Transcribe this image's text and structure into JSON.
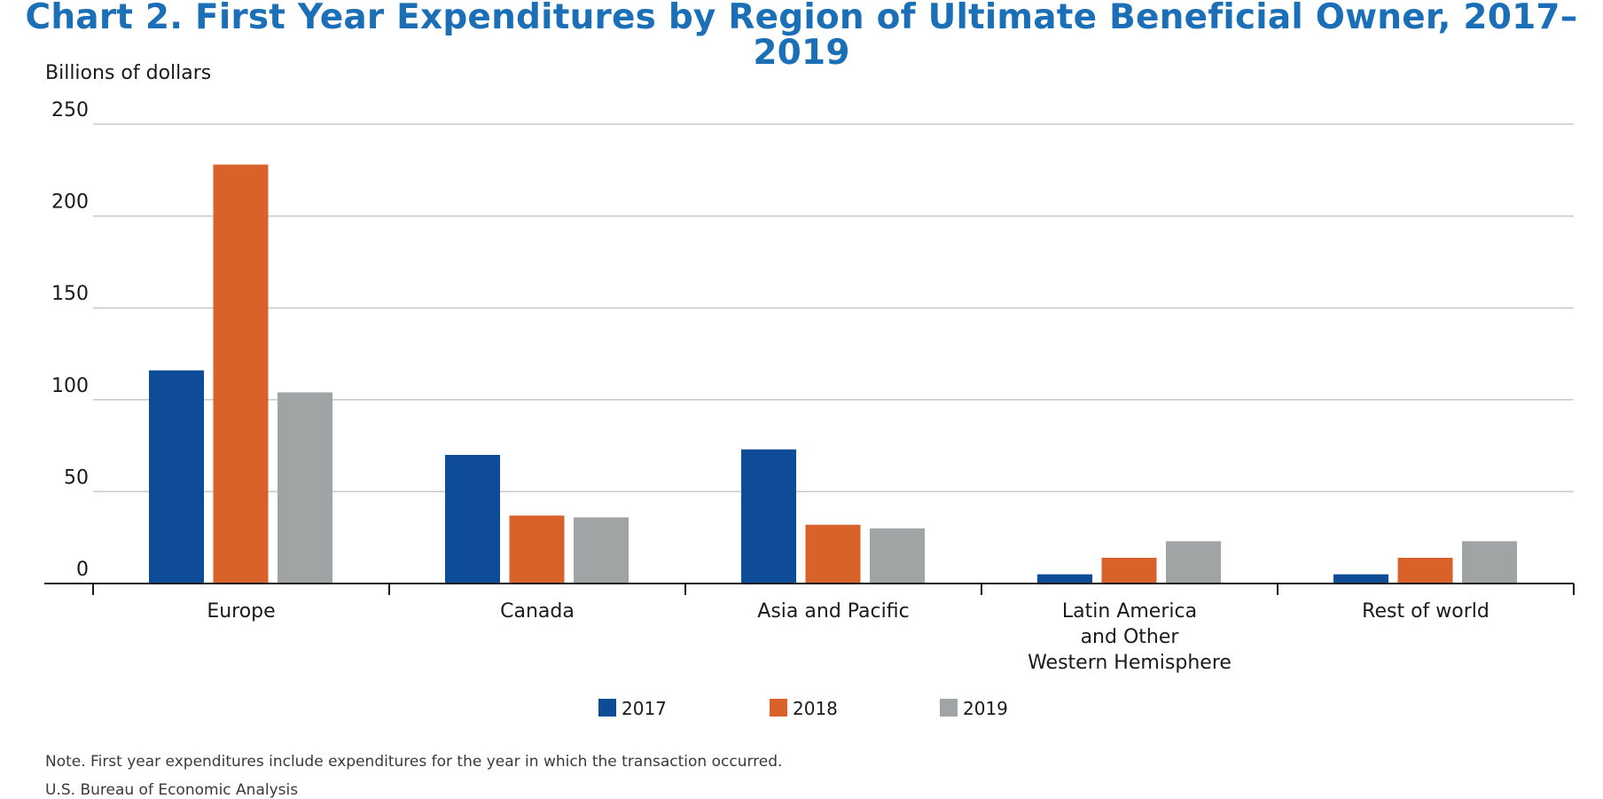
{
  "chart_data": {
    "type": "bar",
    "title": "Chart 2. First Year Expenditures by Region of Ultimate Beneficial Owner, 2017–2019",
    "ylabel": "Billions of dollars",
    "xlabel": "",
    "ylim": [
      0,
      250
    ],
    "yticks": [
      0,
      50,
      100,
      150,
      200,
      250
    ],
    "grid": true,
    "legend_position": "bottom-center",
    "categories": [
      [
        "Europe"
      ],
      [
        "Canada"
      ],
      [
        "Asia and Pacific"
      ],
      [
        "Latin America",
        "and Other",
        "Western Hemisphere"
      ],
      [
        "Rest of world"
      ]
    ],
    "series": [
      {
        "name": "2017",
        "color": "#0f4c97",
        "values": [
          116,
          70,
          73,
          5,
          5
        ]
      },
      {
        "name": "2018",
        "color": "#d9622b",
        "values": [
          228,
          37,
          32,
          14,
          14
        ]
      },
      {
        "name": "2019",
        "color": "#a1a4a4",
        "values": [
          104,
          36,
          30,
          23,
          23
        ]
      }
    ]
  },
  "notes": {
    "note": "Note. First year expenditures include expenditures for the year in which the transaction occurred.",
    "source": "U.S. Bureau of Economic Analysis"
  }
}
